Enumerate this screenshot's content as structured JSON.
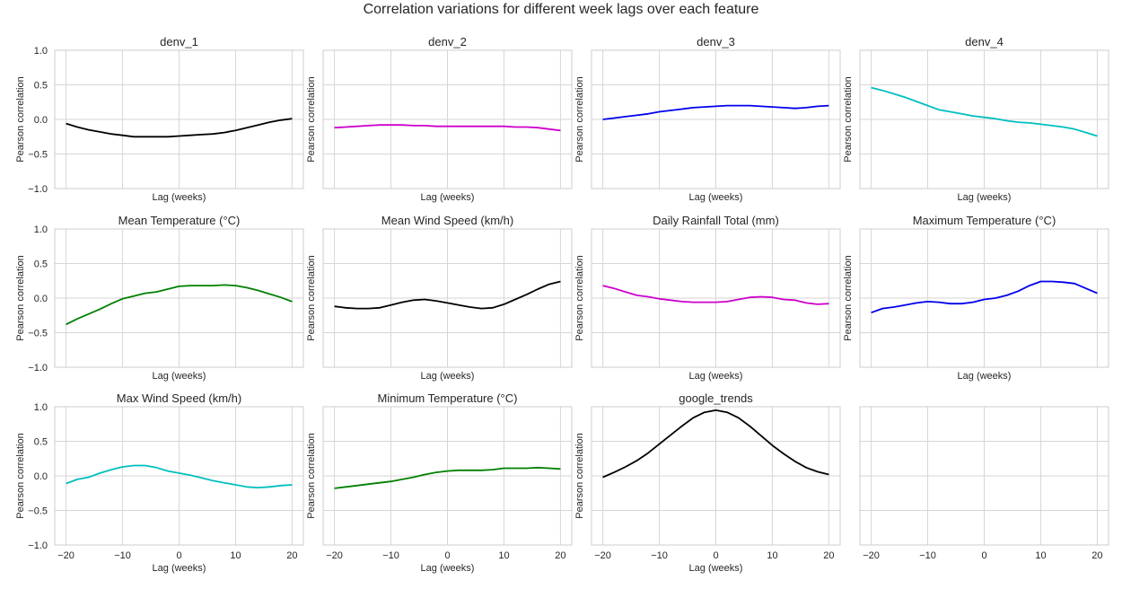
{
  "figure_title": "Correlation variations for different week lags over each feature",
  "shared": {
    "xlabel": "Lag (weeks)",
    "ylabel": "Pearson correlation",
    "xlim": [
      -22,
      22
    ],
    "ylim": [
      -1.0,
      1.0
    ],
    "xticks": [
      -20,
      -10,
      0,
      10,
      20
    ],
    "xtick_labels": [
      "−20",
      "−10",
      "0",
      "10",
      "20"
    ],
    "yticks": [
      -1.0,
      -0.5,
      0.0,
      0.5,
      1.0
    ],
    "ytick_labels": [
      "−1.0",
      "−0.5",
      "0.0",
      "0.5",
      "1.0"
    ],
    "grid": true
  },
  "chart_data": [
    {
      "type": "line",
      "title": "denv_1",
      "color": "#000000",
      "x": [
        -20,
        -18,
        -16,
        -14,
        -12,
        -10,
        -8,
        -6,
        -4,
        -2,
        0,
        2,
        4,
        6,
        8,
        10,
        12,
        14,
        16,
        18,
        20
      ],
      "values": [
        -0.06,
        -0.11,
        -0.15,
        -0.18,
        -0.21,
        -0.23,
        -0.25,
        -0.25,
        -0.25,
        -0.25,
        -0.24,
        -0.23,
        -0.22,
        -0.21,
        -0.19,
        -0.16,
        -0.12,
        -0.08,
        -0.04,
        -0.01,
        0.01
      ]
    },
    {
      "type": "line",
      "title": "denv_2",
      "color": "#cc00cc",
      "x": [
        -20,
        -18,
        -16,
        -14,
        -12,
        -10,
        -8,
        -6,
        -4,
        -2,
        0,
        2,
        4,
        6,
        8,
        10,
        12,
        14,
        16,
        18,
        20
      ],
      "values": [
        -0.12,
        -0.11,
        -0.1,
        -0.09,
        -0.08,
        -0.08,
        -0.08,
        -0.09,
        -0.09,
        -0.1,
        -0.1,
        -0.1,
        -0.1,
        -0.1,
        -0.1,
        -0.1,
        -0.11,
        -0.11,
        -0.12,
        -0.14,
        -0.16
      ]
    },
    {
      "type": "line",
      "title": "denv_3",
      "color": "#0000ee",
      "x": [
        -20,
        -18,
        -16,
        -14,
        -12,
        -10,
        -8,
        -6,
        -4,
        -2,
        0,
        2,
        4,
        6,
        8,
        10,
        12,
        14,
        16,
        18,
        20
      ],
      "values": [
        0.0,
        0.02,
        0.04,
        0.06,
        0.08,
        0.11,
        0.13,
        0.15,
        0.17,
        0.18,
        0.19,
        0.2,
        0.2,
        0.2,
        0.19,
        0.18,
        0.17,
        0.16,
        0.17,
        0.19,
        0.2
      ]
    },
    {
      "type": "line",
      "title": "denv_4",
      "color": "#00bfbf",
      "x": [
        -20,
        -18,
        -16,
        -14,
        -12,
        -10,
        -8,
        -6,
        -4,
        -2,
        0,
        2,
        4,
        6,
        8,
        10,
        12,
        14,
        16,
        18,
        20
      ],
      "values": [
        0.46,
        0.42,
        0.37,
        0.32,
        0.26,
        0.2,
        0.14,
        0.11,
        0.08,
        0.05,
        0.03,
        0.01,
        -0.02,
        -0.04,
        -0.05,
        -0.07,
        -0.09,
        -0.11,
        -0.14,
        -0.19,
        -0.24
      ]
    },
    {
      "type": "line",
      "title": "Mean Temperature (°C)",
      "color": "#008000",
      "x": [
        -20,
        -18,
        -16,
        -14,
        -12,
        -10,
        -8,
        -6,
        -4,
        -2,
        0,
        2,
        4,
        6,
        8,
        10,
        12,
        14,
        16,
        18,
        20
      ],
      "values": [
        -0.38,
        -0.3,
        -0.23,
        -0.16,
        -0.08,
        -0.01,
        0.03,
        0.07,
        0.09,
        0.13,
        0.17,
        0.18,
        0.18,
        0.18,
        0.19,
        0.18,
        0.15,
        0.11,
        0.06,
        0.01,
        -0.05
      ]
    },
    {
      "type": "line",
      "title": "Mean Wind Speed (km/h)",
      "color": "#000000",
      "x": [
        -20,
        -18,
        -16,
        -14,
        -12,
        -10,
        -8,
        -6,
        -4,
        -2,
        0,
        2,
        4,
        6,
        8,
        10,
        12,
        14,
        16,
        18,
        20
      ],
      "values": [
        -0.12,
        -0.14,
        -0.15,
        -0.15,
        -0.14,
        -0.1,
        -0.06,
        -0.03,
        -0.02,
        -0.04,
        -0.07,
        -0.1,
        -0.13,
        -0.15,
        -0.14,
        -0.09,
        -0.02,
        0.05,
        0.13,
        0.2,
        0.24
      ]
    },
    {
      "type": "line",
      "title": "Daily Rainfall Total (mm)",
      "color": "#cc00cc",
      "x": [
        -20,
        -18,
        -16,
        -14,
        -12,
        -10,
        -8,
        -6,
        -4,
        -2,
        0,
        2,
        4,
        6,
        8,
        10,
        12,
        14,
        16,
        18,
        20
      ],
      "values": [
        0.18,
        0.14,
        0.09,
        0.04,
        0.02,
        -0.01,
        -0.03,
        -0.05,
        -0.06,
        -0.06,
        -0.06,
        -0.05,
        -0.02,
        0.01,
        0.02,
        0.01,
        -0.02,
        -0.03,
        -0.07,
        -0.09,
        -0.08
      ]
    },
    {
      "type": "line",
      "title": "Maximum Temperature (°C)",
      "color": "#0000ee",
      "x": [
        -20,
        -18,
        -16,
        -14,
        -12,
        -10,
        -8,
        -6,
        -4,
        -2,
        0,
        2,
        4,
        6,
        8,
        10,
        12,
        14,
        16,
        18,
        20
      ],
      "values": [
        -0.21,
        -0.15,
        -0.13,
        -0.1,
        -0.07,
        -0.05,
        -0.06,
        -0.08,
        -0.08,
        -0.06,
        -0.02,
        0.0,
        0.04,
        0.1,
        0.18,
        0.24,
        0.24,
        0.23,
        0.21,
        0.14,
        0.07
      ]
    },
    {
      "type": "line",
      "title": "Max Wind Speed (km/h)",
      "color": "#00bfbf",
      "x": [
        -20,
        -18,
        -16,
        -14,
        -12,
        -10,
        -8,
        -6,
        -4,
        -2,
        0,
        2,
        4,
        6,
        8,
        10,
        12,
        14,
        16,
        18,
        20
      ],
      "values": [
        -0.11,
        -0.05,
        -0.02,
        0.04,
        0.09,
        0.13,
        0.15,
        0.15,
        0.12,
        0.07,
        0.04,
        0.01,
        -0.03,
        -0.07,
        -0.1,
        -0.13,
        -0.16,
        -0.17,
        -0.16,
        -0.14,
        -0.13
      ]
    },
    {
      "type": "line",
      "title": "Minimum Temperature (°C)",
      "color": "#008000",
      "x": [
        -20,
        -18,
        -16,
        -14,
        -12,
        -10,
        -8,
        -6,
        -4,
        -2,
        0,
        2,
        4,
        6,
        8,
        10,
        12,
        14,
        16,
        18,
        20
      ],
      "values": [
        -0.18,
        -0.16,
        -0.14,
        -0.12,
        -0.1,
        -0.08,
        -0.05,
        -0.02,
        0.02,
        0.05,
        0.07,
        0.08,
        0.08,
        0.08,
        0.09,
        0.11,
        0.11,
        0.11,
        0.12,
        0.11,
        0.1
      ]
    },
    {
      "type": "line",
      "title": "google_trends",
      "color": "#000000",
      "x": [
        -20,
        -18,
        -16,
        -14,
        -12,
        -10,
        -8,
        -6,
        -4,
        -2,
        0,
        2,
        4,
        6,
        8,
        10,
        12,
        14,
        16,
        18,
        20
      ],
      "values": [
        -0.02,
        0.05,
        0.13,
        0.22,
        0.33,
        0.46,
        0.59,
        0.72,
        0.84,
        0.92,
        0.95,
        0.92,
        0.84,
        0.72,
        0.58,
        0.44,
        0.32,
        0.21,
        0.12,
        0.06,
        0.02
      ]
    },
    {
      "type": "line",
      "title": "",
      "color": "",
      "x": [],
      "values": []
    }
  ]
}
